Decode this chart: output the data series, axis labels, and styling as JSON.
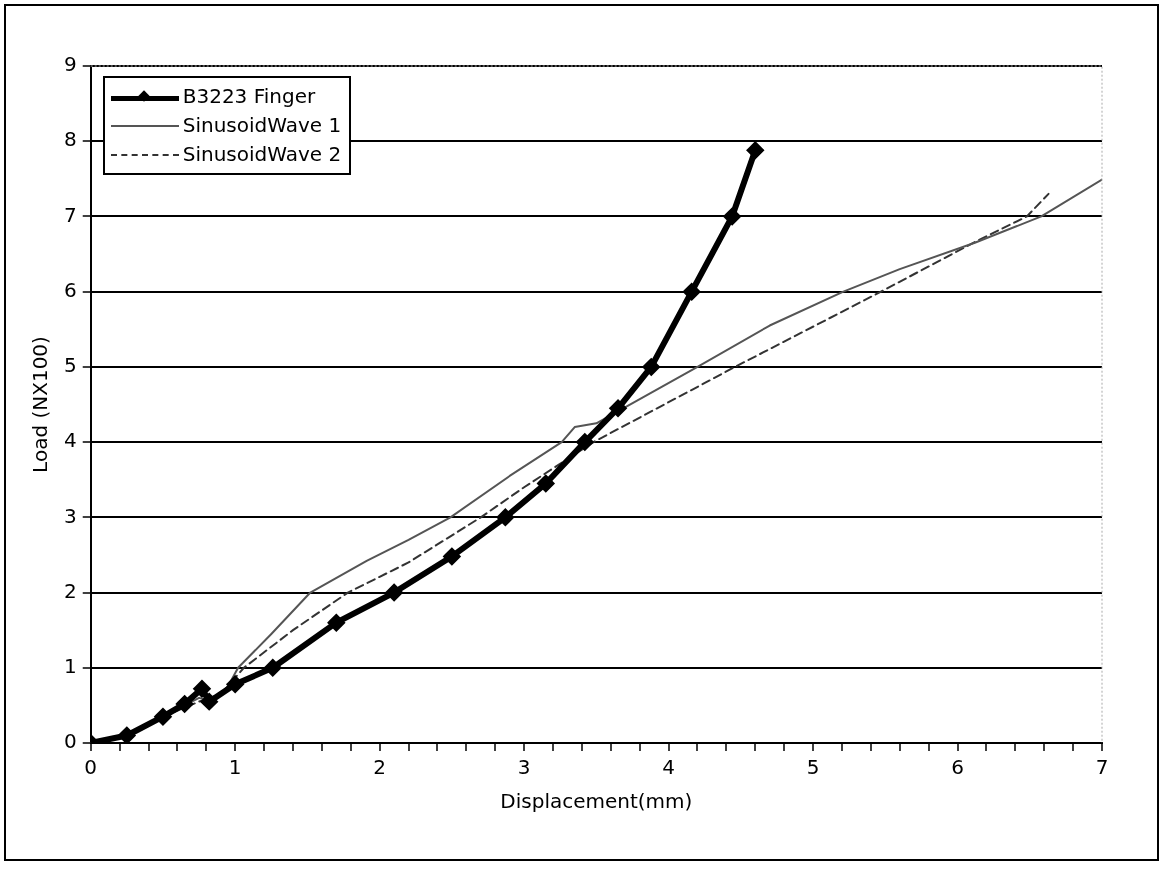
{
  "chart_data": {
    "type": "line",
    "xlabel": "Displacement(mm)",
    "ylabel": "Load (NX100)",
    "xlim": [
      0,
      7
    ],
    "ylim": [
      0,
      9
    ],
    "xticks": [
      0,
      {
        "value": 0.2,
        "label": null
      },
      {
        "value": 0.4,
        "label": null
      },
      {
        "value": 0.6,
        "label": null
      },
      {
        "value": 0.8,
        "label": null
      },
      1,
      {
        "value": 1.2,
        "label": null
      },
      {
        "value": 1.4,
        "label": null
      },
      {
        "value": 1.6,
        "label": null
      },
      {
        "value": 1.8,
        "label": null
      },
      2,
      {
        "value": 2.2,
        "label": null
      },
      {
        "value": 2.4,
        "label": null
      },
      {
        "value": 2.6,
        "label": null
      },
      {
        "value": 2.8,
        "label": null
      },
      3,
      {
        "value": 3.2,
        "label": null
      },
      {
        "value": 3.4,
        "label": null
      },
      {
        "value": 3.6,
        "label": null
      },
      {
        "value": 3.8,
        "label": null
      },
      4,
      {
        "value": 4.2,
        "label": null
      },
      {
        "value": 4.4,
        "label": null
      },
      {
        "value": 4.6,
        "label": null
      },
      {
        "value": 4.8,
        "label": null
      },
      5,
      {
        "value": 5.2,
        "label": null
      },
      {
        "value": 5.4,
        "label": null
      },
      {
        "value": 5.6,
        "label": null
      },
      {
        "value": 5.8,
        "label": null
      },
      6,
      {
        "value": 6.2,
        "label": null
      },
      {
        "value": 6.4,
        "label": null
      },
      {
        "value": 6.6,
        "label": null
      },
      {
        "value": 6.8,
        "label": null
      },
      7
    ],
    "yticks": [
      0,
      1,
      2,
      3,
      4,
      5,
      6,
      7,
      8,
      9
    ],
    "grid": "y",
    "legend": "top left",
    "series": [
      {
        "name": "B3223 Finger",
        "color": "#000000",
        "marker": "diamond",
        "line_style": "solid",
        "x": [
          0,
          0.25,
          0.5,
          0.65,
          0.77,
          0.82,
          1.0,
          1.26,
          1.7,
          2.1,
          2.5,
          2.87,
          3.15,
          3.42,
          3.65,
          3.88,
          4.16,
          4.44,
          4.6
        ],
        "values": [
          0,
          0.1,
          0.35,
          0.52,
          0.72,
          0.55,
          0.78,
          1,
          1.6,
          2,
          2.48,
          3,
          3.45,
          4,
          4.45,
          5,
          6,
          7,
          7.88
        ]
      },
      {
        "name": "SinusoidWave 1",
        "color": "#555555",
        "marker": "none",
        "line_style": "solid",
        "x": [
          0,
          0.25,
          0.5,
          0.75,
          0.85,
          0.95,
          1.02,
          1.25,
          1.52,
          1.91,
          2.2,
          2.49,
          2.9,
          3.26,
          3.35,
          3.5,
          4.2,
          4.7,
          5.21,
          5.6,
          6.12,
          6.58,
          7
        ],
        "values": [
          0,
          0.1,
          0.35,
          0.6,
          0.55,
          0.75,
          1,
          1.45,
          2,
          2.42,
          2.7,
          3,
          3.55,
          4,
          4.2,
          4.25,
          5,
          5.55,
          6,
          6.3,
          6.65,
          7,
          7.49
        ]
      },
      {
        "name": "SinusoidWave 2",
        "color": "#333333",
        "marker": "none",
        "line_style": "dashed",
        "x": [
          0,
          0.25,
          0.5,
          0.75,
          0.9,
          1.06,
          1.4,
          1.78,
          2.2,
          2.7,
          3.0,
          3.2,
          3.48,
          4.46,
          5.47,
          6.12,
          6.48,
          6.63
        ],
        "values": [
          0,
          0.1,
          0.35,
          0.55,
          0.65,
          1,
          1.5,
          2,
          2.4,
          3,
          3.4,
          3.65,
          4,
          5,
          6,
          6.66,
          7,
          7.3
        ]
      }
    ]
  }
}
